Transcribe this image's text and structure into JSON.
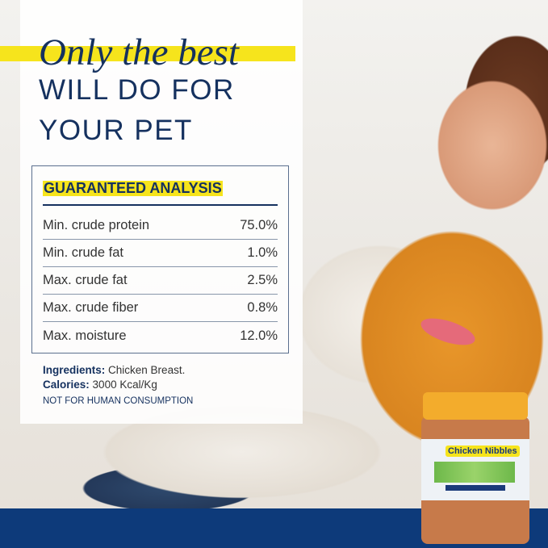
{
  "headline": {
    "script": "Only the best",
    "line2": "WILL DO FOR",
    "line3": "YOUR PET"
  },
  "analysis": {
    "title": "GUARANTEED ANALYSIS",
    "rows": [
      {
        "label": "Min. crude protein",
        "value": "75.0%"
      },
      {
        "label": "Min. crude fat",
        "value": "1.0%"
      },
      {
        "label": "Max. crude fat",
        "value": "2.5%"
      },
      {
        "label": "Max. crude fiber",
        "value": "0.8%"
      },
      {
        "label": "Max. moisture",
        "value": "12.0%"
      }
    ]
  },
  "info": {
    "ingredients_label": "Ingredients:",
    "ingredients": "Chicken Breast.",
    "calories_label": "Calories:",
    "calories": "3000 Kcal/Kg",
    "warning": "NOT FOR HUMAN CONSUMPTION"
  },
  "product": {
    "brand": "Chicken Nibbles"
  },
  "colors": {
    "navy": "#15315f",
    "highlight": "#f6e41c",
    "band": "#0d3a7a",
    "lid": "#f3ac2c"
  }
}
